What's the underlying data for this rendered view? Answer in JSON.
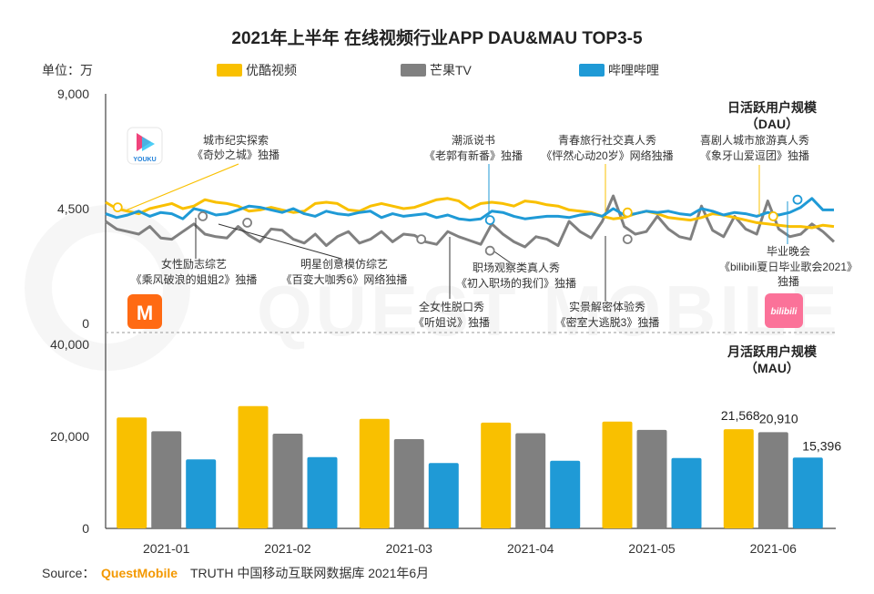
{
  "chart_data": {
    "title": "2021年上半年 在线视频行业APP DAU&MAU TOP3-5",
    "unit_label": "单位：万",
    "colors": {
      "youku": "#f9c000",
      "mgtv": "#808080",
      "bilibili": "#1f9ad6"
    },
    "legend": [
      "优酷视频",
      "芒果TV",
      "哔哩哔哩"
    ],
    "dau": {
      "type": "line",
      "label_cn": "日活跃用户规模",
      "label_en": "（DAU）",
      "y_ticks": [
        "9,000",
        "4,500",
        "0"
      ],
      "ylim": [
        0,
        9000
      ],
      "x_range": [
        "2021-01-01",
        "2021-06-30"
      ],
      "series": [
        {
          "name": "优酷视频",
          "values": [
            4750,
            4500,
            4400,
            4300,
            4500,
            4600,
            4700,
            4500,
            4600,
            4850,
            4750,
            4700,
            4600,
            4400,
            4450,
            4550,
            4450,
            4350,
            4400,
            4700,
            4750,
            4700,
            4450,
            4400,
            4600,
            4700,
            4600,
            4500,
            4550,
            4700,
            4850,
            4900,
            4800,
            4500,
            4700,
            4750,
            4700,
            4600,
            4800,
            4750,
            4650,
            4600,
            4450,
            4400,
            4350,
            4200,
            4100,
            4150,
            4300,
            4400,
            4300,
            4150,
            4100,
            4050,
            4150,
            4300,
            4250,
            4150,
            4050,
            3950,
            3900,
            3850,
            3800,
            3800,
            3750,
            3850,
            3800
          ]
        },
        {
          "name": "芒果TV",
          "values": [
            4000,
            3700,
            3600,
            3500,
            3800,
            3350,
            3300,
            3600,
            3900,
            3500,
            3400,
            3350,
            3800,
            3450,
            3200,
            3700,
            3650,
            3300,
            3150,
            3500,
            3050,
            3400,
            3600,
            3150,
            3300,
            3600,
            3200,
            3500,
            3450,
            3200,
            3100,
            3600,
            3400,
            3250,
            3100,
            3900,
            3500,
            3200,
            3000,
            3400,
            3300,
            3050,
            4000,
            3600,
            3350,
            4000,
            5000,
            3800,
            3500,
            3600,
            4200,
            3700,
            3400,
            3300,
            4600,
            3650,
            3400,
            4200,
            3700,
            3500,
            4800,
            3700,
            3400,
            3500,
            3900,
            3600,
            3200
          ]
        },
        {
          "name": "哔哩哔哩",
          "values": [
            4300,
            4150,
            4250,
            4400,
            4200,
            4350,
            4300,
            4100,
            4500,
            4400,
            4250,
            4300,
            4450,
            4600,
            4550,
            4450,
            4350,
            4500,
            4300,
            4200,
            4400,
            4300,
            4250,
            4350,
            4400,
            4150,
            4300,
            4200,
            4250,
            4300,
            4150,
            4250,
            4100,
            4050,
            4100,
            4400,
            4350,
            4200,
            4100,
            4150,
            4200,
            4200,
            4150,
            4250,
            4300,
            4200,
            4500,
            4250,
            4300,
            4400,
            4350,
            4400,
            4300,
            4250,
            4500,
            4400,
            4250,
            4350,
            4300,
            4200,
            4350,
            4250,
            4350,
            4550,
            4900,
            4450,
            4450
          ]
        }
      ],
      "callouts": [
        {
          "text1": "城市纪实探索",
          "text2": "《奇妙之城》独播",
          "series": "优酷视频",
          "date": "2021-01-04",
          "value": 4550
        },
        {
          "text1": "女性励志综艺",
          "text2": "《乘风破浪的姐姐2》独播",
          "series": "芒果TV",
          "date": "2021-01-25",
          "value": 4200
        },
        {
          "text1": "明星创意模仿综艺",
          "text2": "《百变大咖秀6》网络独播",
          "series": "芒果TV",
          "date": "2021-02-05",
          "value": 3950
        },
        {
          "text1": "全女性脱口秀",
          "text2": "《听姐说》独播",
          "series": "芒果TV",
          "date": "2021-03-20",
          "value": 3300
        },
        {
          "text1": "潮派说书",
          "text2": "《老郭有新番》独播",
          "series": "哔哩哔哩",
          "date": "2021-04-06",
          "value": 4050
        },
        {
          "text1": "职场观察类真人秀",
          "text2": "《初入职场的我们》独播",
          "series": "芒果TV",
          "date": "2021-04-06",
          "value": 2850
        },
        {
          "text1": "青春旅行社交真人秀",
          "text2": "《怦然心动20岁》网络独播",
          "series": "优酷视频",
          "date": "2021-05-10",
          "value": 4350
        },
        {
          "text1": "实景解密体验秀",
          "text2": "《密室大逃脱3》独播",
          "series": "芒果TV",
          "date": "2021-05-10",
          "value": 3300
        },
        {
          "text1": "喜剧人城市旅游真人秀",
          "text2": "《象牙山爱逗团》独播",
          "series": "优酷视频",
          "date": "2021-06-15",
          "value": 4200
        },
        {
          "text1": "毕业晚会",
          "text2": "《bilibili夏日毕业歌会2021》",
          "text3": "独播",
          "series": "哔哩哔哩",
          "date": "2021-06-21",
          "value": 4850
        }
      ]
    },
    "mau": {
      "type": "bar",
      "label_cn": "月活跃用户规模",
      "label_en": "（MAU）",
      "y_ticks": [
        "40,000",
        "20,000",
        "0"
      ],
      "ylim": [
        0,
        40000
      ],
      "categories": [
        "2021-01",
        "2021-02",
        "2021-03",
        "2021-04",
        "2021-05",
        "2021-06"
      ],
      "series": [
        {
          "name": "优酷视频",
          "values": [
            24100,
            26600,
            23800,
            23000,
            23200,
            21568
          ]
        },
        {
          "name": "芒果TV",
          "values": [
            21100,
            20600,
            19400,
            20700,
            21400,
            20910
          ]
        },
        {
          "name": "哔哩哔哩",
          "values": [
            15000,
            15500,
            14200,
            14700,
            15300,
            15396
          ]
        }
      ],
      "value_labels": [
        {
          "category": "2021-06",
          "series": "优酷视频",
          "text": "21,568"
        },
        {
          "category": "2021-06",
          "series": "芒果TV",
          "text": "20,910"
        },
        {
          "category": "2021-06",
          "series": "哔哩哔哩",
          "text": "15,396"
        }
      ]
    },
    "source_prefix": "Source：",
    "source_brand": "QuestMobile",
    "source_suffix": "TRUTH 中国移动互联网数据库 2021年6月",
    "watermark": "QUEST MOBILE",
    "app_logos": [
      {
        "name": "youku",
        "text": "YOUKU",
        "color": "#f0447c"
      },
      {
        "name": "mgtv",
        "text": "M",
        "color": "#ff6a13"
      },
      {
        "name": "bilibili",
        "text": "bilibili",
        "color": "#fb7299"
      }
    ]
  }
}
